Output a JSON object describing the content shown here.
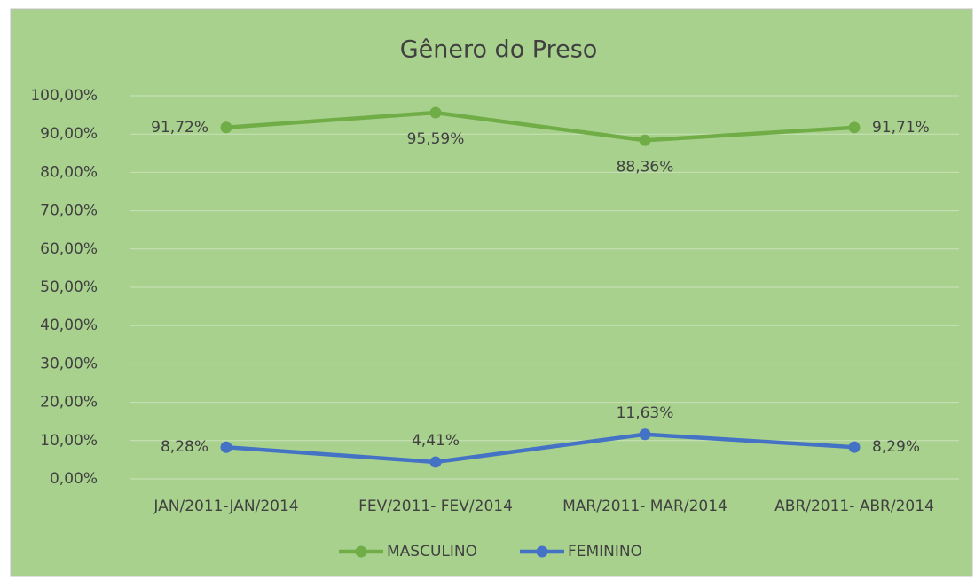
{
  "chart_data": {
    "type": "line",
    "title": "Gênero do Preso",
    "categories": [
      "JAN/2011-JAN/2014",
      "FEV/2011- FEV/2014",
      "MAR/2011- MAR/2014",
      "ABR/2011- ABR/2014"
    ],
    "series": [
      {
        "name": "MASCULINO",
        "color": "#70ad47",
        "values": [
          91.72,
          95.59,
          88.36,
          91.71
        ],
        "value_labels": [
          "91,72%",
          "95,59%",
          "88,36%",
          "91,71%"
        ]
      },
      {
        "name": "FEMININO",
        "color": "#4472c4",
        "values": [
          8.28,
          4.41,
          11.63,
          8.29
        ],
        "value_labels": [
          "8,28%",
          "4,41%",
          "11,63%",
          "8,29%"
        ]
      }
    ],
    "ylim": [
      0,
      100
    ],
    "yticks": [
      {
        "value": 0,
        "label": "0,00%"
      },
      {
        "value": 10,
        "label": "10,00%"
      },
      {
        "value": 20,
        "label": "20,00%"
      },
      {
        "value": 30,
        "label": "30,00%"
      },
      {
        "value": 40,
        "label": "40,00%"
      },
      {
        "value": 50,
        "label": "50,00%"
      },
      {
        "value": 60,
        "label": "60,00%"
      },
      {
        "value": 70,
        "label": "70,00%"
      },
      {
        "value": 80,
        "label": "80,00%"
      },
      {
        "value": 90,
        "label": "90,00%"
      },
      {
        "value": 100,
        "label": "100,00%"
      }
    ],
    "grid": true,
    "legend": "bottom"
  }
}
